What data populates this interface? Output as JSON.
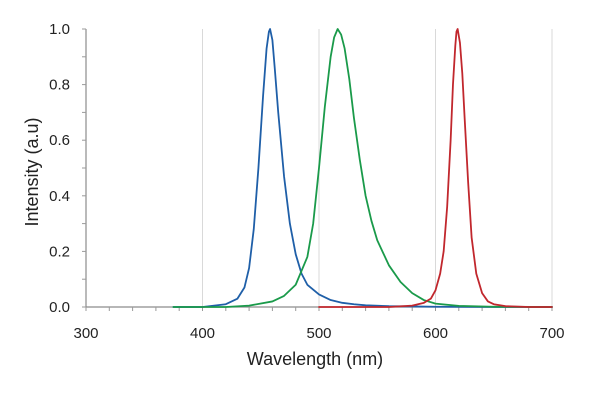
{
  "chart_data": {
    "type": "line",
    "title": "",
    "xlabel": "Wavelength (nm)",
    "ylabel": "Intensity (a.u)",
    "xlim": [
      300,
      700
    ],
    "ylim": [
      0,
      1.0
    ],
    "x_ticks": [
      300,
      400,
      500,
      600,
      700
    ],
    "y_ticks": [
      0.0,
      0.2,
      0.4,
      0.6,
      0.8,
      1.0
    ],
    "x_tick_labels": [
      "300",
      "400",
      "500",
      "600",
      "700"
    ],
    "y_tick_labels": [
      "0.0",
      "0.2",
      "0.4",
      "0.6",
      "0.8",
      "1.0"
    ],
    "grid": {
      "vertical": true,
      "horizontal": false
    },
    "series": [
      {
        "color": "#1f5fa8",
        "x": [
          375,
          400,
          420,
          430,
          436,
          440,
          444,
          448,
          452,
          455,
          457,
          458,
          460,
          462,
          465,
          470,
          475,
          480,
          485,
          490,
          500,
          510,
          520,
          530,
          540,
          560,
          580,
          600,
          650,
          700
        ],
        "y": [
          0.0,
          0.0,
          0.01,
          0.03,
          0.07,
          0.14,
          0.28,
          0.5,
          0.76,
          0.93,
          0.99,
          1.0,
          0.96,
          0.86,
          0.7,
          0.47,
          0.3,
          0.19,
          0.12,
          0.08,
          0.045,
          0.025,
          0.015,
          0.01,
          0.006,
          0.003,
          0.002,
          0.001,
          0.0,
          0.0
        ]
      },
      {
        "color": "#1a9a4a",
        "x": [
          375,
          420,
          440,
          460,
          470,
          480,
          490,
          495,
          500,
          505,
          510,
          513,
          516,
          519,
          522,
          526,
          530,
          535,
          540,
          545,
          550,
          560,
          570,
          580,
          590,
          600,
          620,
          650,
          700
        ],
        "y": [
          0.0,
          0.0,
          0.005,
          0.02,
          0.04,
          0.08,
          0.18,
          0.3,
          0.5,
          0.72,
          0.9,
          0.97,
          1.0,
          0.98,
          0.93,
          0.82,
          0.68,
          0.53,
          0.4,
          0.31,
          0.24,
          0.15,
          0.09,
          0.05,
          0.025,
          0.012,
          0.004,
          0.001,
          0.0
        ]
      },
      {
        "color": "#c1272d",
        "x": [
          500,
          560,
          580,
          590,
          596,
          600,
          604,
          607,
          610,
          613,
          615,
          617,
          618,
          619,
          621,
          623,
          625,
          628,
          631,
          635,
          640,
          645,
          650,
          660,
          680,
          700
        ],
        "y": [
          0.0,
          0.0,
          0.005,
          0.015,
          0.03,
          0.06,
          0.12,
          0.2,
          0.36,
          0.6,
          0.8,
          0.94,
          0.99,
          1.0,
          0.95,
          0.84,
          0.68,
          0.45,
          0.25,
          0.12,
          0.05,
          0.02,
          0.01,
          0.003,
          0.0,
          0.0
        ]
      }
    ]
  }
}
